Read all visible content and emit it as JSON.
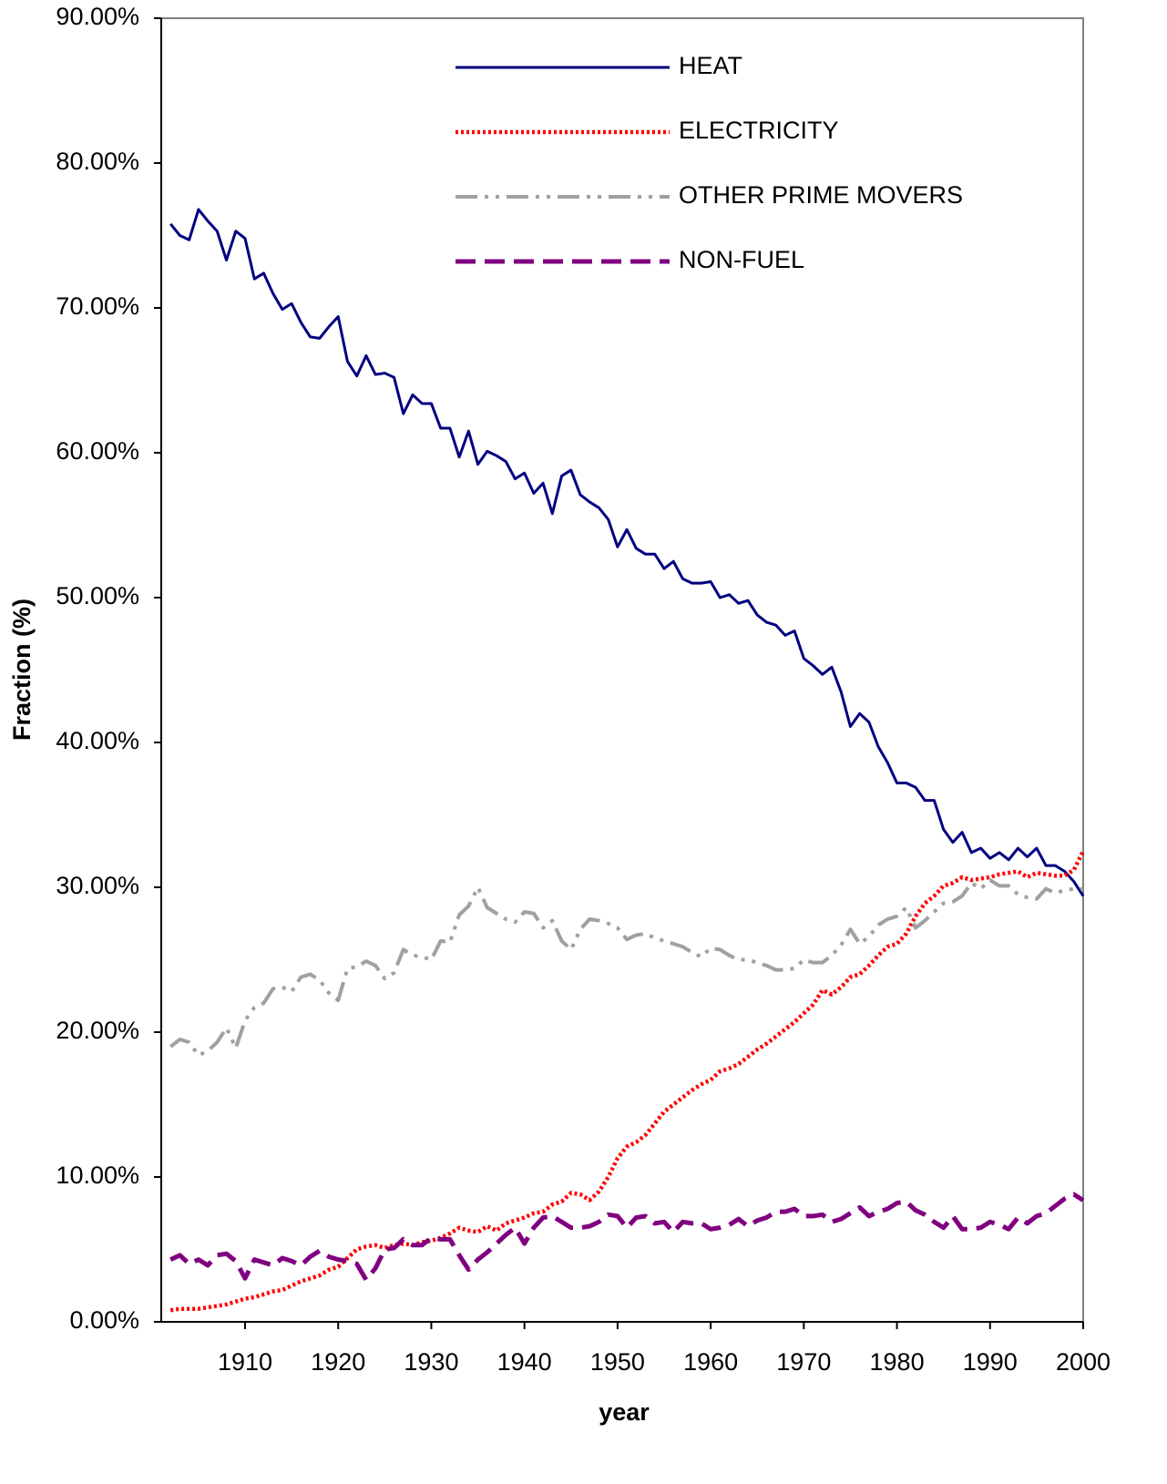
{
  "chart_data": {
    "type": "line",
    "x_label": "year",
    "y_label": "Fraction (%)",
    "x": [
      1902,
      1903,
      1904,
      1905,
      1906,
      1907,
      1908,
      1909,
      1910,
      1911,
      1912,
      1913,
      1914,
      1915,
      1916,
      1917,
      1918,
      1919,
      1920,
      1921,
      1922,
      1923,
      1924,
      1925,
      1926,
      1927,
      1928,
      1929,
      1930,
      1931,
      1932,
      1933,
      1934,
      1935,
      1936,
      1937,
      1938,
      1939,
      1940,
      1941,
      1942,
      1943,
      1944,
      1945,
      1946,
      1947,
      1948,
      1949,
      1950,
      1951,
      1952,
      1953,
      1954,
      1955,
      1956,
      1957,
      1958,
      1959,
      1960,
      1961,
      1962,
      1963,
      1964,
      1965,
      1966,
      1967,
      1968,
      1969,
      1970,
      1971,
      1972,
      1973,
      1974,
      1975,
      1976,
      1977,
      1978,
      1979,
      1980,
      1981,
      1982,
      1983,
      1984,
      1985,
      1986,
      1987,
      1988,
      1989,
      1990,
      1991,
      1992,
      1993,
      1994,
      1995,
      1996,
      1997,
      1998,
      1999,
      2000
    ],
    "series": [
      {
        "name": "HEAT",
        "color": "#000080",
        "dash": "solid",
        "values": [
          75.8,
          75.0,
          74.7,
          76.8,
          76.0,
          75.3,
          73.3,
          75.3,
          74.8,
          72.0,
          72.4,
          71.0,
          69.9,
          70.3,
          69.0,
          68.0,
          67.9,
          68.7,
          69.4,
          66.3,
          65.3,
          66.7,
          65.4,
          65.5,
          65.2,
          62.7,
          64.0,
          63.4,
          63.4,
          61.7,
          61.7,
          59.7,
          61.5,
          59.2,
          60.1,
          59.8,
          59.4,
          58.2,
          58.6,
          57.2,
          57.9,
          55.8,
          58.4,
          58.8,
          57.1,
          56.6,
          56.2,
          55.4,
          53.5,
          54.7,
          53.4,
          53.0,
          53.0,
          52.0,
          52.5,
          51.3,
          51.0,
          51.0,
          51.1,
          50.0,
          50.2,
          49.6,
          49.8,
          48.8,
          48.3,
          48.1,
          47.4,
          47.7,
          45.8,
          45.3,
          44.7,
          45.2,
          43.5,
          41.1,
          42.0,
          41.4,
          39.7,
          38.6,
          37.2,
          37.2,
          36.9,
          36.0,
          36.0,
          34.0,
          33.1,
          33.8,
          32.4,
          32.7,
          32.0,
          32.4,
          31.9,
          32.7,
          32.1,
          32.7,
          31.5,
          31.5,
          31.1,
          30.4,
          29.4
        ]
      },
      {
        "name": "ELECTRICITY",
        "color": "#ff0000",
        "dash": "dotted",
        "values": [
          0.8,
          0.9,
          0.9,
          0.9,
          1.0,
          1.1,
          1.2,
          1.4,
          1.6,
          1.7,
          1.9,
          2.1,
          2.2,
          2.5,
          2.8,
          3.0,
          3.2,
          3.6,
          3.8,
          4.4,
          5.0,
          5.2,
          5.3,
          5.1,
          5.3,
          5.4,
          5.3,
          5.5,
          5.6,
          5.8,
          6.1,
          6.5,
          6.3,
          6.2,
          6.6,
          6.3,
          6.8,
          7.0,
          7.2,
          7.5,
          7.6,
          8.1,
          8.3,
          8.9,
          8.8,
          8.4,
          9.0,
          10.0,
          11.3,
          12.1,
          12.4,
          12.9,
          13.7,
          14.5,
          15.0,
          15.5,
          16.0,
          16.4,
          16.7,
          17.3,
          17.5,
          17.8,
          18.3,
          18.8,
          19.2,
          19.7,
          20.2,
          20.7,
          21.3,
          21.9,
          22.9,
          22.6,
          23.1,
          23.8,
          24.0,
          24.6,
          25.3,
          25.9,
          26.1,
          26.8,
          28.0,
          28.9,
          29.4,
          30.1,
          30.3,
          30.7,
          30.5,
          30.6,
          30.7,
          30.9,
          31.0,
          31.1,
          30.7,
          31.0,
          30.9,
          30.8,
          30.8,
          31.2,
          32.5
        ]
      },
      {
        "name": "OTHER PRIME MOVERS",
        "color": "#a0a0a0",
        "dash": "dashdotdot",
        "values": [
          19.0,
          19.5,
          19.3,
          18.4,
          18.7,
          19.3,
          20.3,
          18.9,
          20.8,
          21.7,
          22.0,
          23.0,
          23.1,
          22.8,
          23.8,
          24.0,
          23.6,
          22.7,
          22.2,
          24.4,
          24.5,
          24.9,
          24.6,
          23.7,
          24.1,
          25.7,
          25.3,
          25.2,
          25.0,
          26.3,
          26.2,
          28.1,
          28.7,
          30.0,
          28.6,
          28.2,
          27.8,
          27.6,
          28.3,
          28.2,
          27.2,
          27.7,
          26.3,
          25.7,
          27.1,
          27.8,
          27.7,
          27.5,
          27.2,
          26.4,
          26.7,
          26.8,
          26.5,
          26.3,
          26.1,
          25.9,
          25.5,
          25.2,
          25.8,
          25.7,
          25.3,
          25.0,
          25.0,
          24.8,
          24.6,
          24.3,
          24.3,
          24.4,
          25.0,
          24.8,
          24.8,
          25.3,
          26.0,
          27.1,
          26.1,
          26.6,
          27.4,
          27.8,
          28.0,
          28.6,
          27.2,
          27.7,
          28.3,
          28.9,
          29.0,
          29.4,
          30.3,
          29.9,
          30.5,
          30.1,
          30.1,
          29.5,
          29.3,
          29.2,
          29.9,
          29.6,
          29.8,
          29.9,
          29.9
        ]
      },
      {
        "name": "NON-FUEL",
        "color": "#800080",
        "dash": "dashed",
        "values": [
          4.3,
          4.6,
          4.0,
          4.3,
          3.9,
          4.6,
          4.7,
          4.2,
          3.0,
          4.3,
          4.1,
          3.9,
          4.4,
          4.2,
          3.9,
          4.5,
          4.9,
          4.5,
          4.3,
          4.2,
          4.0,
          2.9,
          3.7,
          5.0,
          5.1,
          5.7,
          5.3,
          5.3,
          5.8,
          5.7,
          5.7,
          4.6,
          3.6,
          4.3,
          4.8,
          5.4,
          6.0,
          6.5,
          5.4,
          6.5,
          7.2,
          7.3,
          6.9,
          6.5,
          6.5,
          6.6,
          6.9,
          7.4,
          7.3,
          6.5,
          7.2,
          7.3,
          6.8,
          6.9,
          6.2,
          6.9,
          6.8,
          6.8,
          6.4,
          6.5,
          6.7,
          7.1,
          6.6,
          7.0,
          7.2,
          7.6,
          7.6,
          7.8,
          7.3,
          7.3,
          7.4,
          6.9,
          7.1,
          7.5,
          7.9,
          7.3,
          7.6,
          7.8,
          8.2,
          8.3,
          7.7,
          7.4,
          6.9,
          6.5,
          7.3,
          6.4,
          6.4,
          6.5,
          6.9,
          6.7,
          6.4,
          7.2,
          6.8,
          7.3,
          7.5,
          8.0,
          8.5,
          8.8,
          8.4
        ]
      }
    ],
    "xlim": [
      1901,
      2000
    ],
    "ylim": [
      0,
      90
    ],
    "xticks": [
      1910,
      1920,
      1930,
      1940,
      1950,
      1960,
      1970,
      1980,
      1990,
      2000
    ],
    "yticks": [
      {
        "value": 0,
        "label": "0.00%"
      },
      {
        "value": 10,
        "label": "10.00%"
      },
      {
        "value": 20,
        "label": "20.00%"
      },
      {
        "value": 30,
        "label": "30.00%"
      },
      {
        "value": 40,
        "label": "40.00%"
      },
      {
        "value": 50,
        "label": "50.00%"
      },
      {
        "value": 60,
        "label": "60.00%"
      },
      {
        "value": 70,
        "label": "70.00%"
      },
      {
        "value": 80,
        "label": "80.00%"
      },
      {
        "value": 90,
        "label": "90.00%"
      }
    ],
    "legend": "top",
    "grid": false
  }
}
